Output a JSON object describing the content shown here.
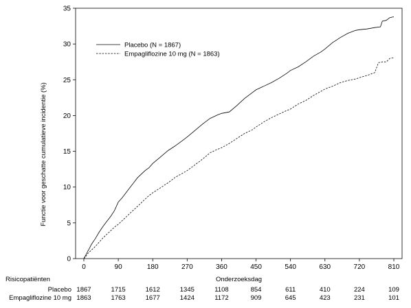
{
  "chart_data": {
    "type": "line",
    "xlabel": "Onderzoeksdag",
    "ylabel": "Functie voor geschatte cumulatieve incidentie (%)",
    "xticks": [
      0,
      90,
      180,
      270,
      360,
      450,
      540,
      630,
      720,
      810
    ],
    "yticks": [
      0,
      5,
      10,
      15,
      20,
      25,
      30,
      35
    ],
    "xlim": [
      0,
      810
    ],
    "ylim": [
      0,
      35
    ],
    "grid": false,
    "legend_position": "top-left",
    "series": [
      {
        "name": "Placebo (N = 1867)",
        "line_style": "solid",
        "x": [
          0,
          5,
          10,
          15,
          20,
          30,
          40,
          50,
          60,
          70,
          80,
          90,
          100,
          110,
          120,
          130,
          140,
          150,
          160,
          170,
          180,
          200,
          220,
          240,
          260,
          270,
          290,
          310,
          330,
          350,
          360,
          380,
          400,
          420,
          440,
          450,
          470,
          490,
          510,
          530,
          540,
          560,
          580,
          600,
          620,
          630,
          650,
          670,
          690,
          710,
          720,
          740,
          760,
          775,
          780,
          790,
          800,
          810
        ],
        "y": [
          0,
          0.5,
          1.0,
          1.5,
          2.0,
          2.8,
          3.7,
          4.5,
          5.2,
          5.9,
          6.7,
          7.9,
          8.5,
          9.2,
          9.9,
          10.6,
          11.3,
          11.8,
          12.3,
          12.7,
          13.3,
          14.2,
          15.1,
          15.8,
          16.6,
          17.0,
          17.9,
          18.8,
          19.6,
          20.1,
          20.3,
          20.5,
          21.4,
          22.4,
          23.2,
          23.6,
          24.1,
          24.6,
          25.2,
          25.9,
          26.3,
          26.8,
          27.5,
          28.3,
          28.9,
          29.3,
          30.2,
          30.9,
          31.5,
          31.9,
          32.0,
          32.1,
          32.3,
          32.4,
          33.2,
          33.3,
          33.7,
          33.8
        ]
      },
      {
        "name": "Empagliflozine 10 mg (N = 1863)",
        "line_style": "dashed",
        "x": [
          0,
          5,
          10,
          20,
          30,
          40,
          50,
          60,
          70,
          80,
          90,
          100,
          110,
          120,
          130,
          140,
          150,
          160,
          170,
          180,
          200,
          220,
          240,
          260,
          270,
          290,
          310,
          330,
          350,
          360,
          380,
          400,
          420,
          440,
          450,
          470,
          490,
          510,
          530,
          540,
          560,
          580,
          600,
          620,
          630,
          650,
          670,
          690,
          710,
          720,
          740,
          760,
          770,
          780,
          790,
          800,
          810
        ],
        "y": [
          0,
          0.3,
          0.7,
          1.2,
          1.7,
          2.3,
          2.9,
          3.4,
          3.9,
          4.4,
          4.8,
          5.3,
          5.8,
          6.3,
          6.8,
          7.3,
          7.8,
          8.3,
          8.8,
          9.2,
          9.9,
          10.6,
          11.4,
          12.0,
          12.3,
          13.1,
          13.9,
          14.8,
          15.3,
          15.5,
          16.1,
          16.8,
          17.5,
          18.0,
          18.4,
          19.1,
          19.7,
          20.2,
          20.7,
          20.9,
          21.6,
          22.1,
          22.8,
          23.4,
          23.7,
          24.1,
          24.6,
          24.9,
          25.1,
          25.3,
          25.6,
          26.0,
          27.4,
          27.5,
          27.5,
          28.0,
          28.1
        ]
      }
    ],
    "risk_table": {
      "title": "Risicopatiënten",
      "time_points": [
        0,
        90,
        180,
        270,
        360,
        450,
        540,
        630,
        720,
        810
      ],
      "rows": [
        {
          "label": "Placebo",
          "values": [
            "1867",
            "1715",
            "1612",
            "1345",
            "1108",
            "854",
            "611",
            "410",
            "224",
            "109"
          ]
        },
        {
          "label": "Empagliflozine 10 mg",
          "values": [
            "1863",
            "1763",
            "1677",
            "1424",
            "1172",
            "909",
            "645",
            "423",
            "231",
            "101"
          ]
        }
      ]
    }
  }
}
